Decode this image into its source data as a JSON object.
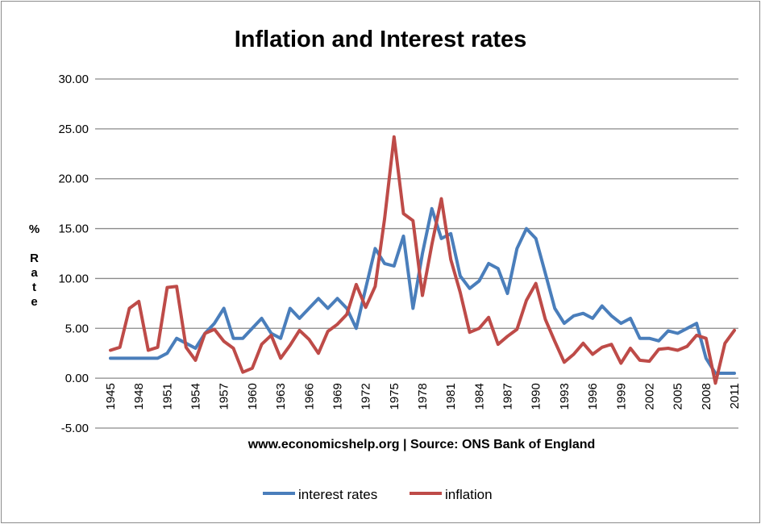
{
  "chart_data": {
    "type": "line",
    "title": "Inflation and Interest rates",
    "ylabel": "% Rate",
    "xlabel": "www.economicshelp.org | Source: ONS Bank of England",
    "ylim": [
      -5,
      30
    ],
    "yticks": [
      "30.00",
      "25.00",
      "20.00",
      "15.00",
      "10.00",
      "5.00",
      "0.00",
      "-5.00"
    ],
    "ytick_values": [
      30,
      25,
      20,
      15,
      10,
      5,
      0,
      -5
    ],
    "grid": true,
    "legend_position": "bottom",
    "x": [
      1945,
      1946,
      1947,
      1948,
      1949,
      1950,
      1951,
      1952,
      1953,
      1954,
      1955,
      1956,
      1957,
      1958,
      1959,
      1960,
      1961,
      1962,
      1963,
      1964,
      1965,
      1966,
      1967,
      1968,
      1969,
      1970,
      1971,
      1972,
      1973,
      1974,
      1975,
      1976,
      1977,
      1978,
      1979,
      1980,
      1981,
      1982,
      1983,
      1984,
      1985,
      1986,
      1987,
      1988,
      1989,
      1990,
      1991,
      1992,
      1993,
      1994,
      1995,
      1996,
      1997,
      1998,
      1999,
      2000,
      2001,
      2002,
      2003,
      2004,
      2005,
      2006,
      2007,
      2008,
      2009,
      2010,
      2011
    ],
    "xtick_labels": [
      "1945",
      "1948",
      "1951",
      "1954",
      "1957",
      "1960",
      "1963",
      "1966",
      "1969",
      "1972",
      "1975",
      "1978",
      "1981",
      "1984",
      "1987",
      "1990",
      "1993",
      "1996",
      "1999",
      "2002",
      "2005",
      "2008",
      "2011"
    ],
    "series": [
      {
        "name": "interest rates",
        "color": "#4a7ebb",
        "values": [
          2,
          2,
          2,
          2,
          2,
          2,
          2.5,
          4,
          3.5,
          3,
          4.5,
          5.5,
          7,
          4,
          4,
          5,
          6,
          4.5,
          4,
          7,
          6,
          7,
          8,
          7,
          8,
          7,
          5,
          9,
          13,
          11.5,
          11.25,
          14.25,
          7,
          12.5,
          17,
          14,
          14.5,
          10.25,
          9,
          9.75,
          11.5,
          11,
          8.5,
          13,
          15,
          14,
          10.5,
          7,
          5.5,
          6.25,
          6.5,
          6,
          7.25,
          6.25,
          5.5,
          6,
          4,
          4,
          3.75,
          4.75,
          4.5,
          5,
          5.5,
          2,
          0.5,
          0.5,
          0.5
        ]
      },
      {
        "name": "inflation",
        "color": "#be4b48",
        "values": [
          2.8,
          3.1,
          7,
          7.7,
          2.8,
          3.1,
          9.1,
          9.2,
          3.1,
          1.8,
          4.5,
          4.9,
          3.7,
          3,
          0.6,
          1,
          3.4,
          4.3,
          2,
          3.3,
          4.8,
          3.9,
          2.5,
          4.7,
          5.4,
          6.4,
          9.4,
          7.1,
          9.2,
          16,
          24.2,
          16.5,
          15.8,
          8.3,
          13.4,
          18,
          11.9,
          8.6,
          4.6,
          5,
          6.1,
          3.4,
          4.2,
          4.9,
          7.8,
          9.5,
          5.9,
          3.7,
          1.6,
          2.4,
          3.5,
          2.4,
          3.1,
          3.4,
          1.5,
          3,
          1.8,
          1.7,
          2.9,
          3,
          2.8,
          3.2,
          4.3,
          4,
          -0.5,
          3.5,
          4.8
        ]
      }
    ]
  }
}
